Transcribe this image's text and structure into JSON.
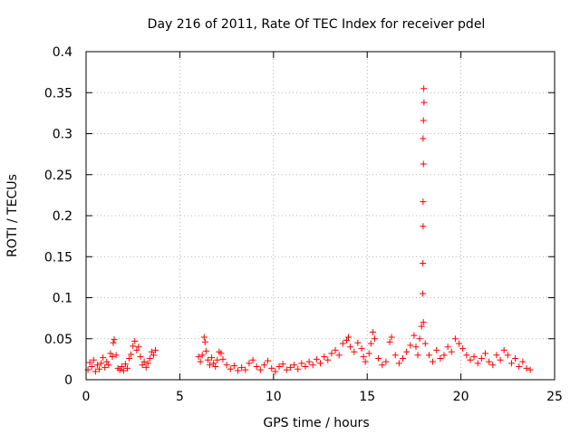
{
  "chart_data": {
    "type": "scatter",
    "title": "Day 216 of 2011, Rate Of TEC Index for receiver pdel",
    "xlabel": "GPS time / hours",
    "ylabel": "ROTI / TECUs",
    "xlim": [
      0,
      25
    ],
    "ylim": [
      0,
      0.4
    ],
    "xticks": [
      0,
      5,
      10,
      15,
      20,
      25
    ],
    "yticks": [
      0,
      0.05,
      0.1,
      0.15,
      0.2,
      0.25,
      0.3,
      0.35,
      0.4
    ],
    "xtick_labels": [
      "0",
      "5",
      "10",
      "15",
      "20",
      "25"
    ],
    "ytick_labels": [
      "0",
      "0.05",
      "0.1",
      "0.15",
      "0.2",
      "0.25",
      "0.3",
      "0.35",
      "0.4"
    ],
    "grid": true,
    "marker": "+",
    "series": [
      {
        "name": "ROTI",
        "color": "#ff0000",
        "points": [
          [
            0.1,
            0.012
          ],
          [
            0.2,
            0.021
          ],
          [
            0.3,
            0.016
          ],
          [
            0.4,
            0.024
          ],
          [
            0.5,
            0.01
          ],
          [
            0.6,
            0.018
          ],
          [
            0.7,
            0.013
          ],
          [
            0.8,
            0.02
          ],
          [
            0.9,
            0.027
          ],
          [
            1.0,
            0.015
          ],
          [
            1.1,
            0.022
          ],
          [
            1.2,
            0.018
          ],
          [
            1.3,
            0.032
          ],
          [
            1.4,
            0.028
          ],
          [
            1.45,
            0.045
          ],
          [
            1.5,
            0.049
          ],
          [
            1.6,
            0.03
          ],
          [
            1.7,
            0.014
          ],
          [
            1.8,
            0.012
          ],
          [
            1.9,
            0.016
          ],
          [
            2.0,
            0.011
          ],
          [
            2.1,
            0.019
          ],
          [
            2.2,
            0.014
          ],
          [
            2.3,
            0.026
          ],
          [
            2.4,
            0.031
          ],
          [
            2.5,
            0.041
          ],
          [
            2.6,
            0.047
          ],
          [
            2.7,
            0.036
          ],
          [
            2.8,
            0.04
          ],
          [
            2.9,
            0.028
          ],
          [
            3.0,
            0.018
          ],
          [
            3.1,
            0.022
          ],
          [
            3.2,
            0.015
          ],
          [
            3.3,
            0.02
          ],
          [
            3.4,
            0.026
          ],
          [
            3.5,
            0.034
          ],
          [
            3.6,
            0.03
          ],
          [
            3.7,
            0.036
          ],
          [
            6.0,
            0.028
          ],
          [
            6.1,
            0.022
          ],
          [
            6.2,
            0.03
          ],
          [
            6.3,
            0.052
          ],
          [
            6.35,
            0.046
          ],
          [
            6.4,
            0.035
          ],
          [
            6.5,
            0.024
          ],
          [
            6.6,
            0.018
          ],
          [
            6.7,
            0.027
          ],
          [
            6.8,
            0.02
          ],
          [
            6.9,
            0.016
          ],
          [
            7.0,
            0.024
          ],
          [
            7.1,
            0.034
          ],
          [
            7.2,
            0.032
          ],
          [
            7.3,
            0.025
          ],
          [
            7.5,
            0.018
          ],
          [
            7.7,
            0.013
          ],
          [
            7.9,
            0.017
          ],
          [
            8.1,
            0.011
          ],
          [
            8.3,
            0.015
          ],
          [
            8.5,
            0.012
          ],
          [
            8.7,
            0.02
          ],
          [
            8.9,
            0.024
          ],
          [
            9.1,
            0.016
          ],
          [
            9.3,
            0.012
          ],
          [
            9.5,
            0.018
          ],
          [
            9.7,
            0.023
          ],
          [
            9.9,
            0.014
          ],
          [
            10.1,
            0.01
          ],
          [
            10.3,
            0.016
          ],
          [
            10.5,
            0.019
          ],
          [
            10.7,
            0.012
          ],
          [
            10.9,
            0.015
          ],
          [
            11.1,
            0.018
          ],
          [
            11.3,
            0.013
          ],
          [
            11.5,
            0.02
          ],
          [
            11.7,
            0.016
          ],
          [
            11.9,
            0.022
          ],
          [
            12.1,
            0.018
          ],
          [
            12.3,
            0.025
          ],
          [
            12.5,
            0.02
          ],
          [
            12.7,
            0.028
          ],
          [
            12.9,
            0.024
          ],
          [
            13.1,
            0.032
          ],
          [
            13.3,
            0.036
          ],
          [
            13.5,
            0.03
          ],
          [
            13.7,
            0.044
          ],
          [
            13.9,
            0.048
          ],
          [
            14.0,
            0.052
          ],
          [
            14.1,
            0.04
          ],
          [
            14.3,
            0.034
          ],
          [
            14.5,
            0.045
          ],
          [
            14.7,
            0.038
          ],
          [
            14.8,
            0.028
          ],
          [
            14.9,
            0.022
          ],
          [
            15.1,
            0.032
          ],
          [
            15.2,
            0.044
          ],
          [
            15.3,
            0.058
          ],
          [
            15.4,
            0.05
          ],
          [
            15.6,
            0.026
          ],
          [
            15.8,
            0.018
          ],
          [
            16.0,
            0.022
          ],
          [
            16.2,
            0.046
          ],
          [
            16.3,
            0.052
          ],
          [
            16.5,
            0.03
          ],
          [
            16.7,
            0.02
          ],
          [
            16.9,
            0.026
          ],
          [
            17.1,
            0.034
          ],
          [
            17.3,
            0.042
          ],
          [
            17.5,
            0.054
          ],
          [
            17.6,
            0.04
          ],
          [
            17.7,
            0.03
          ],
          [
            17.8,
            0.05
          ],
          [
            17.9,
            0.065
          ],
          [
            18.0,
            0.07
          ],
          [
            18.1,
            0.044
          ],
          [
            18.3,
            0.03
          ],
          [
            18.5,
            0.022
          ],
          [
            18.7,
            0.036
          ],
          [
            18.9,
            0.026
          ],
          [
            19.1,
            0.03
          ],
          [
            19.3,
            0.04
          ],
          [
            19.5,
            0.034
          ],
          [
            19.7,
            0.05
          ],
          [
            19.9,
            0.044
          ],
          [
            20.1,
            0.038
          ],
          [
            20.3,
            0.03
          ],
          [
            20.5,
            0.024
          ],
          [
            20.7,
            0.028
          ],
          [
            20.9,
            0.02
          ],
          [
            21.1,
            0.026
          ],
          [
            21.3,
            0.032
          ],
          [
            21.5,
            0.022
          ],
          [
            21.7,
            0.018
          ],
          [
            21.9,
            0.03
          ],
          [
            22.1,
            0.024
          ],
          [
            22.3,
            0.036
          ],
          [
            22.5,
            0.03
          ],
          [
            22.7,
            0.02
          ],
          [
            22.9,
            0.026
          ],
          [
            23.1,
            0.016
          ],
          [
            23.3,
            0.022
          ],
          [
            23.5,
            0.014
          ],
          [
            23.7,
            0.012
          ],
          [
            17.97,
            0.105
          ],
          [
            17.97,
            0.142
          ],
          [
            17.98,
            0.187
          ],
          [
            17.98,
            0.217
          ],
          [
            18.0,
            0.263
          ],
          [
            17.98,
            0.294
          ],
          [
            18.0,
            0.316
          ],
          [
            18.03,
            0.338
          ],
          [
            18.02,
            0.355
          ]
        ]
      }
    ]
  }
}
